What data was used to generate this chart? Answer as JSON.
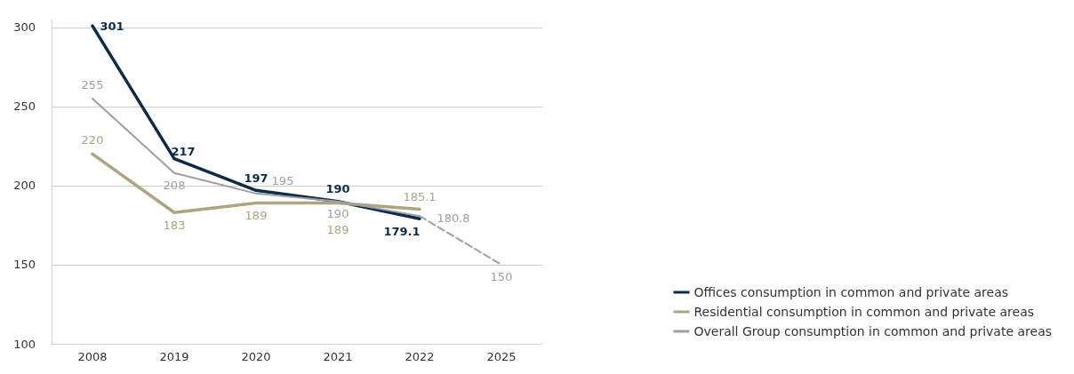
{
  "chart_data": {
    "type": "line",
    "categories": [
      "2008",
      "2019",
      "2020",
      "2021",
      "2022",
      "2025"
    ],
    "series": [
      {
        "name": "Offices consumption in common and private areas",
        "color": "#0d2a47",
        "values": [
          301,
          217,
          197,
          190,
          179.1,
          null
        ]
      },
      {
        "name": "Residential consumption in common and private areas",
        "color": "#ada483",
        "values": [
          220,
          183,
          189,
          189,
          185.1,
          null
        ]
      },
      {
        "name": "Overall Group consumption in common and private areas",
        "color": "#9d9fa3",
        "values": [
          255,
          208,
          195,
          190,
          180.8,
          null
        ]
      },
      {
        "color": "#9d9fa3",
        "line_style": "dashed",
        "values": [
          null,
          null,
          null,
          null,
          180.8,
          150
        ],
        "value_labels": [
          null,
          null,
          null,
          null,
          null,
          "150"
        ]
      }
    ],
    "ylim": [
      100,
      305
    ],
    "yticks": [
      100,
      150,
      200,
      250,
      300
    ],
    "grid": "y",
    "legend": "bottom right",
    "marker": "none",
    "data_labels": true
  }
}
